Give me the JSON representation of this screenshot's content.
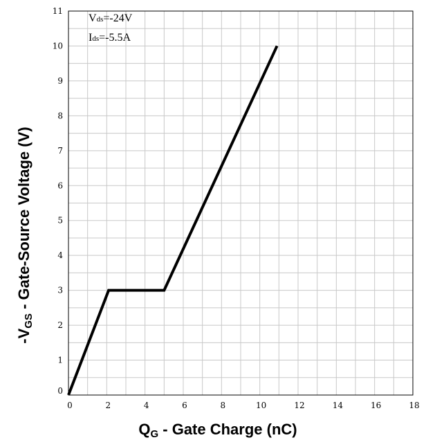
{
  "chart_data": {
    "type": "line",
    "title": "",
    "xlabel": {
      "main": "Q",
      "sub": "G",
      "rest": " - Gate Charge (nC)"
    },
    "ylabel": {
      "prefix": "-V",
      "sub": "GS",
      "rest": " - Gate-Source Voltage (V)"
    },
    "xlim": [
      0,
      18
    ],
    "ylim": [
      0,
      11
    ],
    "xticks": [
      "0",
      "2",
      "4",
      "6",
      "8",
      "10",
      "12",
      "14",
      "16",
      "18"
    ],
    "yticks": [
      "0",
      "1",
      "2",
      "3",
      "4",
      "5",
      "6",
      "7",
      "8",
      "9",
      "10",
      "11"
    ],
    "grid": true,
    "annotations": [
      {
        "main": "V",
        "sub": "ds",
        "rest": "=-24V"
      },
      {
        "main": "I",
        "sub": "ds",
        "rest": "=-5.5A"
      }
    ],
    "series": [
      {
        "x": [
          0,
          2.1,
          5.0,
          10.9
        ],
        "y": [
          0,
          3.0,
          3.0,
          10.0
        ]
      }
    ]
  }
}
